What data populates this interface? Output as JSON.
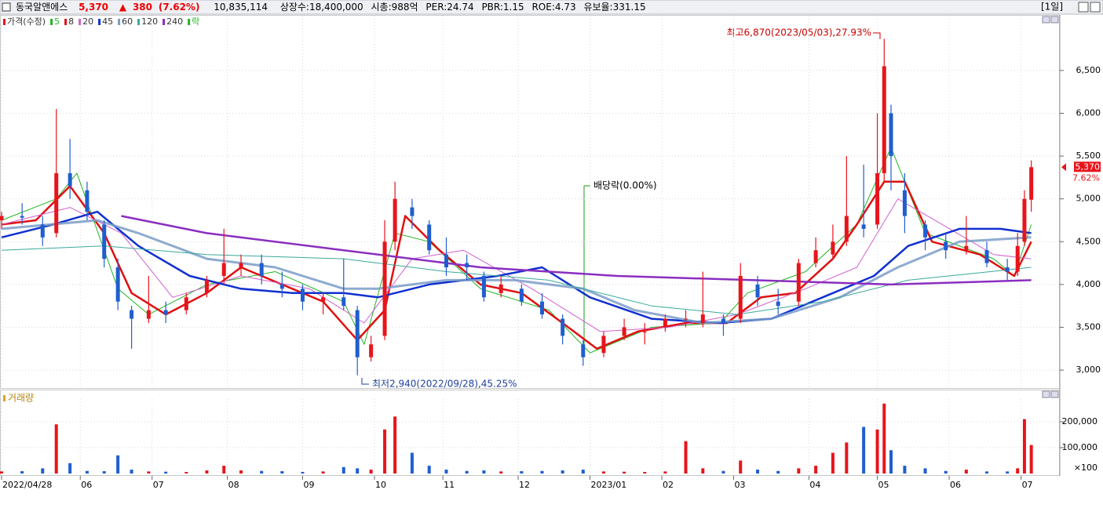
{
  "header": {
    "name": "동국알앤에스",
    "price": "5,370",
    "change_arrow": "▲",
    "change": "380",
    "change_pct": "(7.62%)",
    "volume": "10,835,114",
    "stats": [
      "상장수:18,400,000",
      "시총:988억",
      "PER:24.74",
      "PBR:1.15",
      "ROE:4.73",
      "유보율:331.15"
    ],
    "period": "[1일]"
  },
  "chart_data": {
    "type": "candlestick",
    "legend_label": "가격(수정)",
    "ex_marker": "락",
    "up_color": "#e8141b",
    "down_color": "#1f5ecf",
    "x": [
      0,
      6,
      12,
      16,
      20,
      25,
      30,
      34,
      38,
      43,
      48,
      54,
      60,
      65,
      70,
      76,
      82,
      88,
      94,
      100,
      104,
      108,
      112,
      115,
      120,
      125,
      130,
      136,
      141,
      146,
      152,
      158,
      164,
      170,
      176,
      182,
      188,
      194,
      200,
      205,
      211,
      216,
      221,
      227,
      233,
      238,
      243,
      247,
      252,
      256,
      258,
      260,
      264,
      270,
      276,
      282,
      288,
      294,
      297,
      299,
      301
    ],
    "open": [
      4750,
      4800,
      4700,
      4600,
      5300,
      5100,
      4700,
      4200,
      3700,
      3600,
      3700,
      3700,
      3900,
      4100,
      4200,
      4250,
      4000,
      3950,
      3800,
      3850,
      3700,
      3150,
      3400,
      4500,
      4900,
      4700,
      4350,
      4250,
      4100,
      3900,
      3950,
      3800,
      3600,
      3300,
      3200,
      3400,
      3450,
      3500,
      3600,
      3550,
      3600,
      3600,
      4000,
      3800,
      3800,
      4250,
      4350,
      4500,
      4700,
      4700,
      5300,
      6000,
      5100,
      4700,
      4500,
      4400,
      4400,
      4200,
      4150,
      4500,
      4990
    ],
    "high": [
      4850,
      4950,
      4800,
      6050,
      5700,
      5200,
      4750,
      4300,
      3750,
      4100,
      3800,
      3900,
      4100,
      4650,
      4350,
      4350,
      4150,
      4000,
      3900,
      4300,
      3750,
      3400,
      4750,
      5200,
      5000,
      4750,
      4550,
      4350,
      4150,
      4100,
      4000,
      3900,
      3650,
      3350,
      3450,
      3600,
      3550,
      3650,
      3700,
      4150,
      3650,
      4250,
      4100,
      3950,
      4300,
      4550,
      4700,
      5500,
      5400,
      6000,
      6870,
      6100,
      5300,
      4750,
      4600,
      4800,
      4500,
      4300,
      4600,
      5100,
      5450
    ],
    "low": [
      4650,
      4700,
      4450,
      4550,
      5000,
      4750,
      4200,
      3700,
      3250,
      3550,
      3550,
      3650,
      3850,
      4000,
      4100,
      4000,
      3850,
      3700,
      3650,
      3700,
      2940,
      3100,
      3350,
      4400,
      4650,
      4350,
      4100,
      4050,
      3800,
      3850,
      3750,
      3600,
      3300,
      3050,
      3150,
      3350,
      3300,
      3450,
      3500,
      3500,
      3400,
      3550,
      3750,
      3650,
      3750,
      4200,
      4300,
      4450,
      4550,
      4650,
      5200,
      5100,
      4600,
      4400,
      4300,
      4350,
      4200,
      4050,
      4100,
      4450,
      4850
    ],
    "close": [
      4800,
      4780,
      4550,
      5300,
      5150,
      4850,
      4300,
      3800,
      3600,
      3700,
      3650,
      3850,
      4050,
      4250,
      4250,
      4100,
      3950,
      3800,
      3850,
      3750,
      3150,
      3300,
      4500,
      5000,
      4800,
      4400,
      4200,
      4200,
      3850,
      4000,
      3800,
      3650,
      3400,
      3150,
      3400,
      3500,
      3450,
      3600,
      3600,
      3650,
      3550,
      4100,
      3850,
      3750,
      4250,
      4400,
      4500,
      4800,
      4650,
      5300,
      6550,
      5500,
      4800,
      4550,
      4400,
      4450,
      4250,
      4150,
      4450,
      5000,
      5370
    ],
    "series": [
      {
        "name": "5",
        "color": "#22b522",
        "x": [
          0,
          16,
          22,
          34,
          43,
          60,
          80,
          100,
          106,
          115,
          125,
          140,
          160,
          172,
          190,
          210,
          218,
          235,
          250,
          260,
          270,
          290,
          296,
          301
        ],
        "values": [
          4750,
          5000,
          5300,
          3950,
          3650,
          4000,
          4150,
          3800,
          3300,
          4600,
          4500,
          3950,
          3700,
          3200,
          3500,
          3550,
          3900,
          4150,
          4700,
          5600,
          4600,
          4300,
          4100,
          4700
        ]
      },
      {
        "name": "8",
        "color": "#e01010",
        "x": [
          0,
          10,
          20,
          30,
          38,
          48,
          60,
          70,
          82,
          94,
          104,
          112,
          118,
          128,
          140,
          152,
          164,
          174,
          186,
          200,
          212,
          222,
          232,
          243,
          250,
          258,
          264,
          272,
          286,
          296,
          301
        ],
        "values": [
          4700,
          4750,
          5150,
          4600,
          3900,
          3650,
          3900,
          4200,
          4000,
          3800,
          3350,
          3700,
          4800,
          4400,
          4000,
          3900,
          3550,
          3250,
          3450,
          3550,
          3550,
          3850,
          3900,
          4300,
          4700,
          5200,
          5200,
          4500,
          4350,
          4100,
          4500
        ]
      },
      {
        "name": "20",
        "color": "#d060d0",
        "x": [
          0,
          20,
          35,
          50,
          70,
          90,
          106,
          120,
          135,
          155,
          175,
          195,
          215,
          235,
          250,
          262,
          275,
          290,
          301
        ],
        "values": [
          4700,
          4900,
          4600,
          3850,
          4100,
          3950,
          3550,
          4300,
          4400,
          3950,
          3450,
          3500,
          3650,
          3950,
          4200,
          5000,
          4700,
          4350,
          4300
        ]
      },
      {
        "name": "45",
        "color": "#1030d0",
        "x": [
          0,
          15,
          28,
          40,
          55,
          70,
          85,
          100,
          110,
          125,
          145,
          158,
          172,
          190,
          210,
          225,
          240,
          255,
          265,
          280,
          292,
          301
        ],
        "values": [
          4550,
          4700,
          4850,
          4450,
          4100,
          3950,
          3900,
          3900,
          3850,
          4000,
          4100,
          4200,
          3850,
          3600,
          3550,
          3600,
          3850,
          4100,
          4450,
          4650,
          4650,
          4600
        ]
      },
      {
        "name": "60",
        "color": "#7a9cc8",
        "x": [
          0,
          28,
          40,
          60,
          80,
          100,
          110,
          130,
          150,
          170,
          185,
          205,
          225,
          245,
          262,
          280,
          301
        ],
        "values": [
          4650,
          4750,
          4600,
          4300,
          4200,
          3950,
          3950,
          4050,
          4050,
          3950,
          3700,
          3550,
          3600,
          3850,
          4200,
          4500,
          4550
        ]
      },
      {
        "name": "120",
        "color": "#3aa89a",
        "x": [
          0,
          30,
          60,
          100,
          130,
          160,
          190,
          215,
          240,
          265,
          301
        ],
        "values": [
          4400,
          4450,
          4350,
          4300,
          4150,
          4050,
          3750,
          3650,
          3800,
          4050,
          4200
        ]
      },
      {
        "name": "240",
        "color": "#8a2ec0",
        "x": [
          35,
          60,
          100,
          140,
          180,
          220,
          260,
          301
        ],
        "values": [
          4800,
          4600,
          4400,
          4200,
          4100,
          4050,
          4000,
          4050
        ]
      }
    ],
    "xlim": [
      0,
      302
    ],
    "xticks": [
      {
        "value": 0,
        "label": "2022/04/28"
      },
      {
        "value": 23,
        "label": "06"
      },
      {
        "value": 44,
        "label": "07"
      },
      {
        "value": 66,
        "label": "08"
      },
      {
        "value": 88,
        "label": "09"
      },
      {
        "value": 109,
        "label": "10"
      },
      {
        "value": 129,
        "label": "11"
      },
      {
        "value": 151,
        "label": "12"
      },
      {
        "value": 172,
        "label": "2023/01"
      },
      {
        "value": 193,
        "label": "02"
      },
      {
        "value": 214,
        "label": "03"
      },
      {
        "value": 236,
        "label": "04"
      },
      {
        "value": 256,
        "label": "05"
      },
      {
        "value": 277,
        "label": "06"
      },
      {
        "value": 298,
        "label": "07"
      }
    ],
    "ylim": [
      2790,
      7140
    ],
    "yticks": [
      {
        "value": 3000,
        "label": "3,000"
      },
      {
        "value": 3500,
        "label": "3,500"
      },
      {
        "value": 4000,
        "label": "4,000"
      },
      {
        "value": 4500,
        "label": "4,500"
      },
      {
        "value": 5000,
        "label": "5,000"
      },
      {
        "value": 5500,
        "label": "5,500"
      },
      {
        "value": 6000,
        "label": "6,000"
      },
      {
        "value": 6500,
        "label": "6,500"
      }
    ],
    "grid": true,
    "annotations": {
      "high": "최고6,870(2023/05/03),27.93%",
      "low": "최저2,940(2022/09/28),45.25%",
      "dividend": "배당락(0.00%)"
    },
    "last_label": "5,370",
    "last_pct": "7.62%",
    "volume": {
      "label": "거래량",
      "unit": "×100",
      "ylim": [
        0,
        324000
      ],
      "yticks": [
        {
          "value": 100000,
          "label": "100,000"
        },
        {
          "value": 200000,
          "label": "200,000"
        }
      ],
      "values": [
        8000,
        9000,
        20000,
        190000,
        40000,
        10000,
        9000,
        70000,
        15000,
        8000,
        7000,
        6000,
        12000,
        30000,
        12000,
        10000,
        9000,
        6000,
        8000,
        25000,
        20000,
        15000,
        170000,
        220000,
        80000,
        30000,
        15000,
        10000,
        12000,
        8000,
        9000,
        10000,
        12000,
        15000,
        8000,
        7000,
        6000,
        8000,
        125000,
        20000,
        10000,
        50000,
        15000,
        10000,
        20000,
        30000,
        80000,
        120000,
        180000,
        170000,
        270000,
        90000,
        30000,
        20000,
        10000,
        15000,
        8000,
        8000,
        20000,
        210000,
        110000
      ]
    }
  }
}
